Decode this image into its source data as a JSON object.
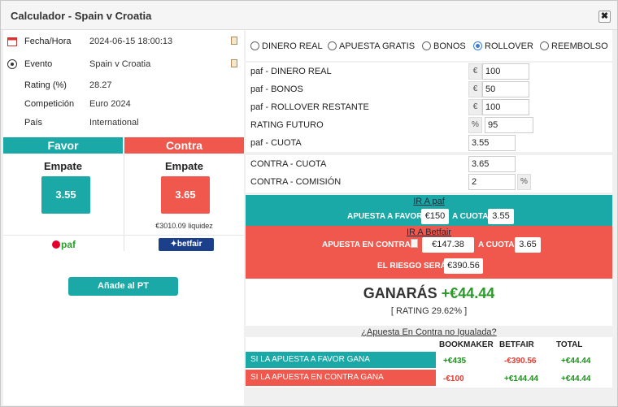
{
  "title": "Calculador - Spain v Croatia",
  "close_label": "✖",
  "info": [
    {
      "label": "Fecha/Hora",
      "value": "2024-06-15 18:00:13",
      "icon": "calendar-icon"
    },
    {
      "label": "Evento",
      "value": "Spain v Croatia",
      "icon": "soccer-ball-icon"
    },
    {
      "label": "Rating (%)",
      "value": "28.27"
    },
    {
      "label": "Competición",
      "value": "Euro 2024"
    },
    {
      "label": "País",
      "value": "International"
    }
  ],
  "favor": {
    "header": "Favor",
    "selection": "Empate",
    "odds": "3.55",
    "bookmaker_logo": "paf"
  },
  "contra": {
    "header": "Contra",
    "selection": "Empate",
    "odds": "3.65",
    "liquidity": "€3010.09 liquidez",
    "exchange_logo": "betfair"
  },
  "add_pt_label": "Añade al PT",
  "radios": [
    {
      "label": "DINERO REAL",
      "checked": false
    },
    {
      "label": "APUESTA GRATIS",
      "checked": false
    },
    {
      "label": "BONOS",
      "checked": false
    },
    {
      "label": "ROLLOVER",
      "checked": true
    },
    {
      "label": "REEMBOLSO",
      "checked": false
    }
  ],
  "form": {
    "paf_dinero_real": {
      "label": "paf - DINERO REAL",
      "unit": "€",
      "value": "100"
    },
    "paf_bonos": {
      "label": "paf - BONOS",
      "unit": "€",
      "value": "50"
    },
    "paf_rollover": {
      "label": "paf - ROLLOVER RESTANTE",
      "unit": "€",
      "value": "100"
    },
    "rating_futuro": {
      "label": "RATING FUTURO",
      "unit": "%",
      "value": "95"
    },
    "paf_cuota": {
      "label": "paf - CUOTA",
      "value": "3.55"
    },
    "contra_cuota": {
      "label": "CONTRA - CUOTA",
      "value": "3.65"
    },
    "contra_comision": {
      "label": "CONTRA - COMISIÓN",
      "value": "2",
      "unit": "%"
    }
  },
  "ir_paf": {
    "link": "IR A paf",
    "apuesta_label": "APUESTA A FAVOR",
    "stake": "€150",
    "cuota_label": "A CUOTA",
    "cuota": "3.55"
  },
  "ir_betfair": {
    "link": "IR A Betfair",
    "apuesta_label": "APUESTA EN CONTRA",
    "stake": "€147.38",
    "cuota_label": "A CUOTA",
    "cuota": "3.65",
    "riesgo_label": "EL RIESGO SERÁ",
    "riesgo": "€390.56"
  },
  "result": {
    "ganaras_label": "GANARÁS",
    "amount": "+€44.44",
    "rating": "[ RATING 29.62% ]"
  },
  "no_igualada_link": "¿Apuesta En Contra no Igualada?",
  "table": {
    "headers": [
      "BOOKMAKER",
      "BETFAIR",
      "TOTAL"
    ],
    "rows": [
      {
        "label": "SI LA APUESTA A FAVOR GANA",
        "bookmaker": "+€435",
        "betfair": "-€390.56",
        "total": "+€44.44"
      },
      {
        "label": "SI LA APUESTA EN CONTRA GANA",
        "bookmaker": "-€100",
        "betfair": "+€144.44",
        "total": "+€44.44"
      }
    ]
  },
  "colors": {
    "teal": "#1aa9a6",
    "red": "#f0584e",
    "positive": "#1f8f1f",
    "negative": "#e03a30"
  }
}
